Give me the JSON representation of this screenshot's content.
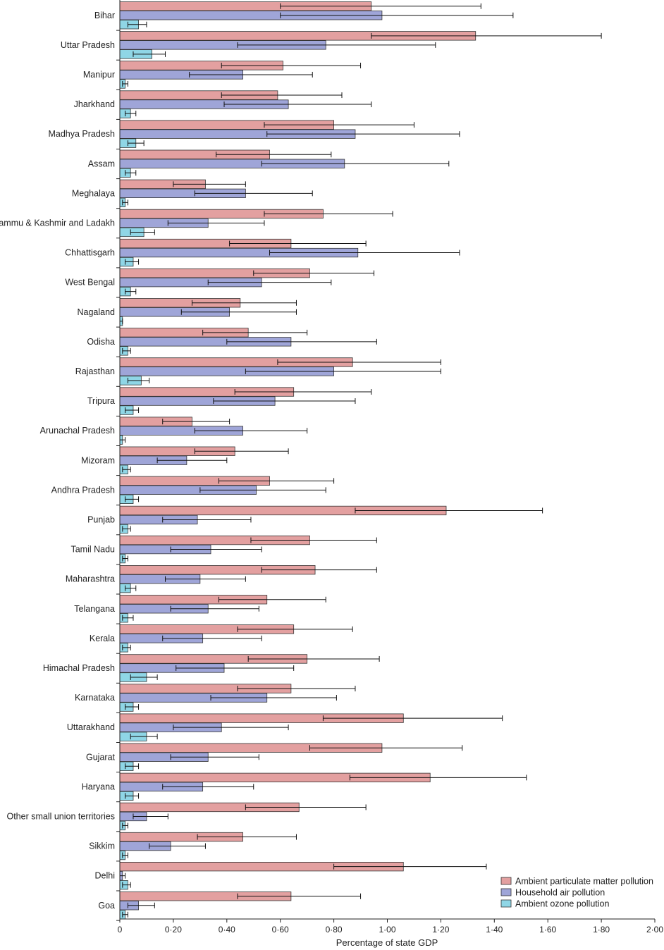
{
  "chart_data": {
    "type": "bar",
    "orientation": "horizontal",
    "xlabel": "Percentage of state GDP",
    "xlim": [
      0,
      2.0
    ],
    "xticks": [
      "0",
      "0·20",
      "0·40",
      "0·60",
      "0·80",
      "1·00",
      "1·20",
      "1·40",
      "1·60",
      "1·80",
      "2·00"
    ],
    "legend_position": "bottom-right",
    "series": [
      {
        "name": "Ambient particulate matter pollution",
        "color": "#e3a0a0"
      },
      {
        "name": "Household air pollution",
        "color": "#9fa5d8"
      },
      {
        "name": "Ambient ozone pollution",
        "color": "#8fd6e6"
      }
    ],
    "categories": [
      {
        "state": "Bihar",
        "values": [
          [
            0.94,
            0.6,
            1.35
          ],
          [
            0.98,
            0.6,
            1.47
          ],
          [
            0.07,
            0.03,
            0.1
          ]
        ]
      },
      {
        "state": "Uttar Pradesh",
        "values": [
          [
            1.33,
            0.94,
            1.8
          ],
          [
            0.77,
            0.44,
            1.18
          ],
          [
            0.12,
            0.05,
            0.17
          ]
        ]
      },
      {
        "state": "Manipur",
        "values": [
          [
            0.61,
            0.38,
            0.9
          ],
          [
            0.46,
            0.26,
            0.72
          ],
          [
            0.02,
            0.01,
            0.03
          ]
        ]
      },
      {
        "state": "Jharkhand",
        "values": [
          [
            0.59,
            0.38,
            0.83
          ],
          [
            0.63,
            0.39,
            0.94
          ],
          [
            0.04,
            0.02,
            0.06
          ]
        ]
      },
      {
        "state": "Madhya Pradesh",
        "values": [
          [
            0.8,
            0.54,
            1.1
          ],
          [
            0.88,
            0.55,
            1.27
          ],
          [
            0.06,
            0.03,
            0.09
          ]
        ]
      },
      {
        "state": "Assam",
        "values": [
          [
            0.56,
            0.36,
            0.79
          ],
          [
            0.84,
            0.53,
            1.23
          ],
          [
            0.04,
            0.02,
            0.06
          ]
        ]
      },
      {
        "state": "Meghalaya",
        "values": [
          [
            0.32,
            0.2,
            0.47
          ],
          [
            0.47,
            0.28,
            0.72
          ],
          [
            0.02,
            0.01,
            0.03
          ]
        ]
      },
      {
        "state": "Jammu & Kashmir and Ladakh",
        "values": [
          [
            0.76,
            0.54,
            1.02
          ],
          [
            0.33,
            0.18,
            0.54
          ],
          [
            0.09,
            0.04,
            0.13
          ]
        ]
      },
      {
        "state": "Chhattisgarh",
        "values": [
          [
            0.64,
            0.41,
            0.92
          ],
          [
            0.89,
            0.56,
            1.27
          ],
          [
            0.05,
            0.02,
            0.07
          ]
        ]
      },
      {
        "state": "West Bengal",
        "values": [
          [
            0.71,
            0.5,
            0.95
          ],
          [
            0.53,
            0.33,
            0.79
          ],
          [
            0.04,
            0.02,
            0.06
          ]
        ]
      },
      {
        "state": "Nagaland",
        "values": [
          [
            0.45,
            0.27,
            0.66
          ],
          [
            0.41,
            0.23,
            0.66
          ],
          [
            0.01,
            0.0,
            0.01
          ]
        ]
      },
      {
        "state": "Odisha",
        "values": [
          [
            0.48,
            0.31,
            0.7
          ],
          [
            0.64,
            0.4,
            0.96
          ],
          [
            0.03,
            0.01,
            0.04
          ]
        ]
      },
      {
        "state": "Rajasthan",
        "values": [
          [
            0.87,
            0.59,
            1.2
          ],
          [
            0.8,
            0.47,
            1.2
          ],
          [
            0.08,
            0.03,
            0.11
          ]
        ]
      },
      {
        "state": "Tripura",
        "values": [
          [
            0.65,
            0.43,
            0.94
          ],
          [
            0.58,
            0.35,
            0.88
          ],
          [
            0.05,
            0.02,
            0.07
          ]
        ]
      },
      {
        "state": "Arunachal Pradesh",
        "values": [
          [
            0.27,
            0.16,
            0.41
          ],
          [
            0.46,
            0.28,
            0.7
          ],
          [
            0.01,
            0.0,
            0.02
          ]
        ]
      },
      {
        "state": "Mizoram",
        "values": [
          [
            0.43,
            0.28,
            0.63
          ],
          [
            0.25,
            0.14,
            0.4
          ],
          [
            0.03,
            0.01,
            0.04
          ]
        ]
      },
      {
        "state": "Andhra Pradesh",
        "values": [
          [
            0.56,
            0.37,
            0.8
          ],
          [
            0.51,
            0.3,
            0.77
          ],
          [
            0.05,
            0.02,
            0.07
          ]
        ]
      },
      {
        "state": "Punjab",
        "values": [
          [
            1.22,
            0.88,
            1.58
          ],
          [
            0.29,
            0.16,
            0.49
          ],
          [
            0.03,
            0.01,
            0.04
          ]
        ]
      },
      {
        "state": "Tamil Nadu",
        "values": [
          [
            0.71,
            0.49,
            0.96
          ],
          [
            0.34,
            0.19,
            0.53
          ],
          [
            0.02,
            0.01,
            0.03
          ]
        ]
      },
      {
        "state": "Maharashtra",
        "values": [
          [
            0.73,
            0.53,
            0.96
          ],
          [
            0.3,
            0.17,
            0.47
          ],
          [
            0.04,
            0.02,
            0.06
          ]
        ]
      },
      {
        "state": "Telangana",
        "values": [
          [
            0.55,
            0.37,
            0.77
          ],
          [
            0.33,
            0.19,
            0.52
          ],
          [
            0.03,
            0.01,
            0.05
          ]
        ]
      },
      {
        "state": "Kerala",
        "values": [
          [
            0.65,
            0.44,
            0.87
          ],
          [
            0.31,
            0.16,
            0.53
          ],
          [
            0.03,
            0.01,
            0.04
          ]
        ]
      },
      {
        "state": "Himachal Pradesh",
        "values": [
          [
            0.7,
            0.48,
            0.97
          ],
          [
            0.39,
            0.21,
            0.65
          ],
          [
            0.1,
            0.04,
            0.14
          ]
        ]
      },
      {
        "state": "Karnataka",
        "values": [
          [
            0.64,
            0.44,
            0.88
          ],
          [
            0.55,
            0.34,
            0.81
          ],
          [
            0.05,
            0.02,
            0.07
          ]
        ]
      },
      {
        "state": "Uttarakhand",
        "values": [
          [
            1.06,
            0.76,
            1.43
          ],
          [
            0.38,
            0.2,
            0.63
          ],
          [
            0.1,
            0.04,
            0.14
          ]
        ]
      },
      {
        "state": "Gujarat",
        "values": [
          [
            0.98,
            0.71,
            1.28
          ],
          [
            0.33,
            0.19,
            0.52
          ],
          [
            0.05,
            0.02,
            0.07
          ]
        ]
      },
      {
        "state": "Haryana",
        "values": [
          [
            1.16,
            0.86,
            1.52
          ],
          [
            0.31,
            0.16,
            0.5
          ],
          [
            0.05,
            0.02,
            0.07
          ]
        ]
      },
      {
        "state": "Other small union territories",
        "values": [
          [
            0.67,
            0.47,
            0.92
          ],
          [
            0.1,
            0.05,
            0.18
          ],
          [
            0.02,
            0.01,
            0.03
          ]
        ]
      },
      {
        "state": "Sikkim",
        "values": [
          [
            0.46,
            0.29,
            0.66
          ],
          [
            0.19,
            0.11,
            0.32
          ],
          [
            0.02,
            0.01,
            0.03
          ]
        ]
      },
      {
        "state": "Delhi",
        "values": [
          [
            1.06,
            0.8,
            1.37
          ],
          [
            0.01,
            0.0,
            0.02
          ],
          [
            0.03,
            0.01,
            0.04
          ]
        ]
      },
      {
        "state": "Goa",
        "values": [
          [
            0.64,
            0.44,
            0.9
          ],
          [
            0.07,
            0.03,
            0.13
          ],
          [
            0.02,
            0.01,
            0.03
          ]
        ]
      }
    ]
  }
}
